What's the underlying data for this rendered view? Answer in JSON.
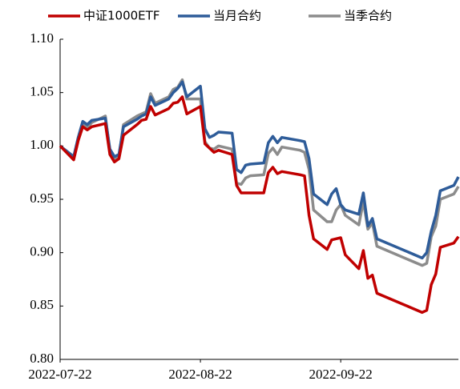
{
  "chart_data": {
    "type": "line",
    "x": [
      "2022-07-22",
      "2022-07-25",
      "2022-07-26",
      "2022-07-27",
      "2022-07-28",
      "2022-07-29",
      "2022-08-01",
      "2022-08-02",
      "2022-08-03",
      "2022-08-04",
      "2022-08-05",
      "2022-08-08",
      "2022-08-09",
      "2022-08-10",
      "2022-08-11",
      "2022-08-12",
      "2022-08-15",
      "2022-08-16",
      "2022-08-17",
      "2022-08-18",
      "2022-08-19",
      "2022-08-22",
      "2022-08-23",
      "2022-08-24",
      "2022-08-25",
      "2022-08-26",
      "2022-08-29",
      "2022-08-30",
      "2022-08-31",
      "2022-09-01",
      "2022-09-02",
      "2022-09-05",
      "2022-09-06",
      "2022-09-07",
      "2022-09-08",
      "2022-09-09",
      "2022-09-13",
      "2022-09-14",
      "2022-09-15",
      "2022-09-16",
      "2022-09-19",
      "2022-09-20",
      "2022-09-21",
      "2022-09-22",
      "2022-09-23",
      "2022-09-26",
      "2022-09-27",
      "2022-09-28",
      "2022-09-29",
      "2022-09-30",
      "2022-10-10",
      "2022-10-11",
      "2022-10-12",
      "2022-10-13",
      "2022-10-14",
      "2022-10-17",
      "2022-10-18"
    ],
    "series": [
      {
        "name": "中证1000ETF",
        "color": "#c00000",
        "values": [
          1.0,
          0.987,
          1.005,
          1.018,
          1.015,
          1.018,
          1.021,
          0.992,
          0.985,
          0.988,
          1.01,
          1.02,
          1.024,
          1.025,
          1.037,
          1.029,
          1.035,
          1.04,
          1.041,
          1.046,
          1.03,
          1.037,
          1.002,
          0.998,
          0.994,
          0.996,
          0.992,
          0.963,
          0.956,
          0.956,
          0.956,
          0.956,
          0.975,
          0.98,
          0.974,
          0.976,
          0.973,
          0.972,
          0.935,
          0.913,
          0.903,
          0.912,
          0.913,
          0.914,
          0.898,
          0.885,
          0.902,
          0.876,
          0.879,
          0.862,
          0.844,
          0.846,
          0.87,
          0.88,
          0.905,
          0.909,
          0.915
        ]
      },
      {
        "name": "当月合约",
        "color": "#2e5c99",
        "values": [
          1.0,
          0.99,
          1.008,
          1.023,
          1.02,
          1.024,
          1.026,
          0.997,
          0.99,
          0.992,
          1.018,
          1.025,
          1.028,
          1.03,
          1.046,
          1.038,
          1.044,
          1.05,
          1.054,
          1.06,
          1.046,
          1.056,
          1.016,
          1.008,
          1.01,
          1.013,
          1.012,
          0.978,
          0.975,
          0.982,
          0.983,
          0.984,
          1.003,
          1.009,
          1.003,
          1.008,
          1.005,
          1.004,
          0.988,
          0.955,
          0.945,
          0.955,
          0.96,
          0.945,
          0.94,
          0.936,
          0.956,
          0.925,
          0.932,
          0.913,
          0.895,
          0.9,
          0.92,
          0.935,
          0.958,
          0.963,
          0.971
        ]
      },
      {
        "name": "当季合约",
        "color": "#8c8c8c",
        "values": [
          1.0,
          0.988,
          1.006,
          1.022,
          1.017,
          1.022,
          1.028,
          0.995,
          0.988,
          0.99,
          1.02,
          1.028,
          1.03,
          1.032,
          1.049,
          1.04,
          1.046,
          1.053,
          1.055,
          1.062,
          1.044,
          1.044,
          1.004,
          0.998,
          0.997,
          1.0,
          0.997,
          0.965,
          0.964,
          0.97,
          0.972,
          0.973,
          0.993,
          0.998,
          0.992,
          0.999,
          0.996,
          0.994,
          0.978,
          0.94,
          0.929,
          0.929,
          0.94,
          0.945,
          0.935,
          0.926,
          0.948,
          0.922,
          0.928,
          0.906,
          0.888,
          0.89,
          0.915,
          0.925,
          0.95,
          0.955,
          0.962
        ]
      }
    ],
    "xlim": [
      "2022-07-22",
      "2022-10-18"
    ],
    "xticks": [
      "2022-07-22",
      "2022-08-22",
      "2022-09-22"
    ],
    "ylim": [
      0.8,
      1.1
    ],
    "yticks": [
      {
        "value": 0.8,
        "label": "0.80"
      },
      {
        "value": 0.85,
        "label": "0.85"
      },
      {
        "value": 0.9,
        "label": "0.90"
      },
      {
        "value": 0.95,
        "label": "0.95"
      },
      {
        "value": 1.0,
        "label": "1.00"
      },
      {
        "value": 1.05,
        "label": "1.05"
      },
      {
        "value": 1.1,
        "label": "1.10"
      }
    ],
    "grid": false,
    "legend": "top"
  }
}
